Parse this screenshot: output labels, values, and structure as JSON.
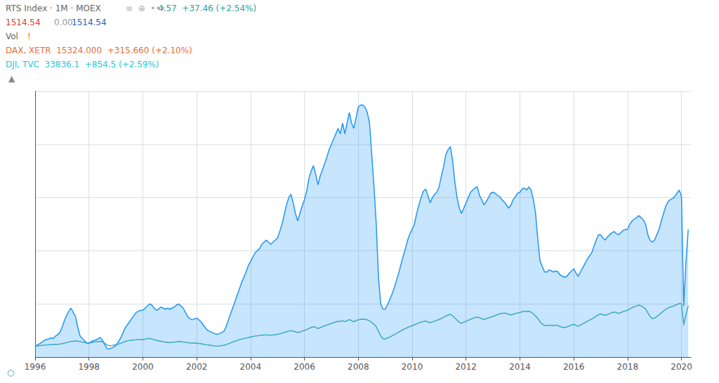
{
  "chart_data": {
    "type": "line",
    "annotations": [
      {
        "text": "RTS Index · 1M · MOEX",
        "color": "#666666"
      },
      {
        "text": "≡  ⊕  •••",
        "color": "#aaaaaa"
      },
      {
        "text": "4.57  +37.46 (+2.54%)",
        "color": "#26a69a"
      },
      {
        "text": "1514.54",
        "color": "#e53935"
      },
      {
        "text": "0.00",
        "color": "#999999"
      },
      {
        "text": "1514.54",
        "color": "#1565C0"
      },
      {
        "text": "Vol",
        "color": "#666666"
      },
      {
        "text": "!",
        "color": "#FF6B00"
      },
      {
        "text": "DAX, XETR  15324.000  +315.660 (+2.10%)",
        "color": "#e07040"
      },
      {
        "text": "DJI, TVC  33836.1  +854.5 (+2.59%)",
        "color": "#26C6DA"
      },
      {
        "text": "▲",
        "color": "#888888"
      },
      {
        "text": "⬡",
        "color": "#26a69a"
      }
    ],
    "x": [
      1996.0,
      1996.083,
      1996.167,
      1996.25,
      1996.333,
      1996.417,
      1996.5,
      1996.583,
      1996.667,
      1996.75,
      1996.833,
      1996.917,
      1997.0,
      1997.083,
      1997.167,
      1997.25,
      1997.333,
      1997.417,
      1997.5,
      1997.583,
      1997.667,
      1997.75,
      1997.833,
      1997.917,
      1998.0,
      1998.083,
      1998.167,
      1998.25,
      1998.333,
      1998.417,
      1998.5,
      1998.583,
      1998.667,
      1998.75,
      1998.833,
      1998.917,
      1999.0,
      1999.083,
      1999.167,
      1999.25,
      1999.333,
      1999.417,
      1999.5,
      1999.583,
      1999.667,
      1999.75,
      1999.833,
      1999.917,
      2000.0,
      2000.083,
      2000.167,
      2000.25,
      2000.333,
      2000.417,
      2000.5,
      2000.583,
      2000.667,
      2000.75,
      2000.833,
      2000.917,
      2001.0,
      2001.083,
      2001.167,
      2001.25,
      2001.333,
      2001.417,
      2001.5,
      2001.583,
      2001.667,
      2001.75,
      2001.833,
      2001.917,
      2002.0,
      2002.083,
      2002.167,
      2002.25,
      2002.333,
      2002.417,
      2002.5,
      2002.583,
      2002.667,
      2002.75,
      2002.833,
      2002.917,
      2003.0,
      2003.083,
      2003.167,
      2003.25,
      2003.333,
      2003.417,
      2003.5,
      2003.583,
      2003.667,
      2003.75,
      2003.833,
      2003.917,
      2004.0,
      2004.083,
      2004.167,
      2004.25,
      2004.333,
      2004.417,
      2004.5,
      2004.583,
      2004.667,
      2004.75,
      2004.833,
      2004.917,
      2005.0,
      2005.083,
      2005.167,
      2005.25,
      2005.333,
      2005.417,
      2005.5,
      2005.583,
      2005.667,
      2005.75,
      2005.833,
      2005.917,
      2006.0,
      2006.083,
      2006.167,
      2006.25,
      2006.333,
      2006.417,
      2006.5,
      2006.583,
      2006.667,
      2006.75,
      2006.833,
      2006.917,
      2007.0,
      2007.083,
      2007.167,
      2007.25,
      2007.333,
      2007.417,
      2007.5,
      2007.583,
      2007.667,
      2007.75,
      2007.833,
      2007.917,
      2008.0,
      2008.083,
      2008.167,
      2008.25,
      2008.333,
      2008.417,
      2008.5,
      2008.583,
      2008.667,
      2008.75,
      2008.833,
      2008.917,
      2009.0,
      2009.083,
      2009.167,
      2009.25,
      2009.333,
      2009.417,
      2009.5,
      2009.583,
      2009.667,
      2009.75,
      2009.833,
      2009.917,
      2010.0,
      2010.083,
      2010.167,
      2010.25,
      2010.333,
      2010.417,
      2010.5,
      2010.583,
      2010.667,
      2010.75,
      2010.833,
      2010.917,
      2011.0,
      2011.083,
      2011.167,
      2011.25,
      2011.333,
      2011.417,
      2011.5,
      2011.583,
      2011.667,
      2011.75,
      2011.833,
      2011.917,
      2012.0,
      2012.083,
      2012.167,
      2012.25,
      2012.333,
      2012.417,
      2012.5,
      2012.583,
      2012.667,
      2012.75,
      2012.833,
      2012.917,
      2013.0,
      2013.083,
      2013.167,
      2013.25,
      2013.333,
      2013.417,
      2013.5,
      2013.583,
      2013.667,
      2013.75,
      2013.833,
      2013.917,
      2014.0,
      2014.083,
      2014.167,
      2014.25,
      2014.333,
      2014.417,
      2014.5,
      2014.583,
      2014.667,
      2014.75,
      2014.833,
      2014.917,
      2015.0,
      2015.083,
      2015.167,
      2015.25,
      2015.333,
      2015.417,
      2015.5,
      2015.583,
      2015.667,
      2015.75,
      2015.833,
      2015.917,
      2016.0,
      2016.083,
      2016.167,
      2016.25,
      2016.333,
      2016.417,
      2016.5,
      2016.583,
      2016.667,
      2016.75,
      2016.833,
      2016.917,
      2017.0,
      2017.083,
      2017.167,
      2017.25,
      2017.333,
      2017.417,
      2017.5,
      2017.583,
      2017.667,
      2017.75,
      2017.833,
      2017.917,
      2018.0,
      2018.083,
      2018.167,
      2018.25,
      2018.333,
      2018.417,
      2018.5,
      2018.583,
      2018.667,
      2018.75,
      2018.833,
      2018.917,
      2019.0,
      2019.083,
      2019.167,
      2019.25,
      2019.333,
      2019.417,
      2019.5,
      2019.583,
      2019.667,
      2019.75,
      2019.833,
      2019.917,
      2020.0,
      2020.083,
      2020.167,
      2020.25
    ],
    "series": [
      {
        "type": "area",
        "color": "#2196F3",
        "values": [
          100,
          115,
          125,
          140,
          155,
          165,
          170,
          180,
          175,
          195,
          210,
          230,
          280,
          340,
          390,
          430,
          460,
          420,
          380,
          280,
          200,
          175,
          155,
          130,
          130,
          145,
          155,
          160,
          170,
          185,
          160,
          120,
          80,
          75,
          85,
          95,
          110,
          140,
          175,
          220,
          270,
          300,
          330,
          360,
          390,
          420,
          430,
          440,
          440,
          460,
          480,
          500,
          490,
          460,
          440,
          450,
          470,
          460,
          450,
          460,
          450,
          460,
          470,
          490,
          500,
          480,
          460,
          420,
          380,
          360,
          350,
          360,
          365,
          350,
          330,
          300,
          270,
          250,
          240,
          230,
          220,
          215,
          220,
          230,
          240,
          280,
          340,
          400,
          460,
          520,
          580,
          640,
          700,
          750,
          800,
          860,
          900,
          940,
          980,
          1000,
          1020,
          1060,
          1080,
          1100,
          1080,
          1060,
          1080,
          1100,
          1120,
          1180,
          1250,
          1340,
          1430,
          1500,
          1530,
          1450,
          1350,
          1280,
          1350,
          1420,
          1480,
          1560,
          1680,
          1750,
          1800,
          1720,
          1620,
          1700,
          1760,
          1820,
          1880,
          1950,
          2000,
          2050,
          2100,
          2150,
          2100,
          2200,
          2100,
          2200,
          2300,
          2200,
          2150,
          2250,
          2350,
          2370,
          2370,
          2350,
          2300,
          2200,
          1900,
          1600,
          1250,
          750,
          500,
          450,
          450,
          490,
          540,
          590,
          650,
          720,
          790,
          870,
          950,
          1020,
          1100,
          1160,
          1200,
          1250,
          1350,
          1430,
          1500,
          1560,
          1580,
          1520,
          1450,
          1500,
          1530,
          1550,
          1600,
          1700,
          1790,
          1900,
          1950,
          1980,
          1850,
          1650,
          1500,
          1400,
          1350,
          1400,
          1450,
          1500,
          1550,
          1570,
          1590,
          1600,
          1520,
          1480,
          1430,
          1460,
          1500,
          1540,
          1550,
          1540,
          1520,
          1510,
          1480,
          1460,
          1430,
          1400,
          1430,
          1480,
          1510,
          1540,
          1550,
          1580,
          1590,
          1570,
          1600,
          1570,
          1480,
          1350,
          1100,
          900,
          850,
          800,
          800,
          820,
          810,
          800,
          810,
          800,
          770,
          760,
          750,
          760,
          790,
          810,
          830,
          790,
          760,
          800,
          840,
          880,
          920,
          950,
          980,
          1040,
          1100,
          1150,
          1150,
          1120,
          1100,
          1130,
          1150,
          1170,
          1180,
          1160,
          1150,
          1170,
          1190,
          1200,
          1200,
          1250,
          1280,
          1300,
          1310,
          1330,
          1310,
          1290,
          1250,
          1150,
          1100,
          1080,
          1100,
          1150,
          1200,
          1280,
          1350,
          1420,
          1460,
          1480,
          1490,
          1510,
          1540,
          1570,
          1514,
          480,
          900,
          1200
        ]
      },
      {
        "type": "line",
        "color": "#e07040",
        "values": [
          100,
          104,
          108,
          110,
          112,
          114,
          115,
          116,
          117,
          118,
          119,
          122,
          125,
          130,
          136,
          140,
          145,
          148,
          150,
          148,
          146,
          140,
          136,
          132,
          132,
          136,
          140,
          143,
          145,
          148,
          144,
          130,
          115,
          105,
          108,
          112,
          115,
          120,
          128,
          136,
          145,
          152,
          155,
          158,
          160,
          162,
          163,
          164,
          164,
          168,
          172,
          175,
          170,
          163,
          156,
          152,
          148,
          144,
          140,
          138,
          135,
          137,
          140,
          143,
          145,
          143,
          141,
          138,
          136,
          132,
          130,
          131,
          130,
          127,
          124,
          120,
          116,
          113,
          110,
          107,
          104,
          102,
          104,
          107,
          110,
          116,
          124,
          132,
          140,
          148,
          155,
          162,
          168,
          173,
          178,
          183,
          188,
          193,
          197,
          200,
          202,
          205,
          207,
          208,
          206,
          205,
          207,
          210,
          213,
          218,
          224,
          230,
          237,
          244,
          248,
          243,
          237,
          230,
          236,
          243,
          250,
          258,
          268,
          278,
          285,
          277,
          268,
          276,
          285,
          293,
          300,
          308,
          315,
          322,
          330,
          337,
          332,
          342,
          332,
          342,
          352,
          342,
          332,
          342,
          350,
          354,
          357,
          354,
          350,
          340,
          325,
          308,
          285,
          240,
          200,
          170,
          170,
          178,
          188,
          198,
          210,
          222,
          234,
          246,
          258,
          268,
          278,
          287,
          295,
          303,
          312,
          321,
          328,
          334,
          337,
          330,
          322,
          330,
          338,
          345,
          352,
          362,
          373,
          385,
          395,
          402,
          388,
          367,
          347,
          327,
          317,
          327,
          336,
          345,
          355,
          363,
          370,
          376,
          368,
          360,
          352,
          360,
          368,
          375,
          382,
          390,
          398,
          405,
          410,
          414,
          408,
          402,
          396,
          402,
          408,
          414,
          418,
          425,
          432,
          428,
          430,
          422,
          406,
          385,
          362,
          332,
          308,
          295,
          296,
          300,
          298,
          296,
          300,
          296,
          284,
          280,
          276,
          284,
          292,
          300,
          308,
          298,
          288,
          300,
          312,
          324,
          336,
          346,
          356,
          370,
          384,
          398,
          405,
          398,
          392,
          400,
          408,
          416,
          422,
          416,
          410,
          418,
          426,
          434,
          440,
          452,
          464,
          474,
          480,
          488,
          480,
          468,
          452,
          416,
          382,
          360,
          366,
          380,
          396,
          414,
          432,
          448,
          460,
          470,
          476,
          484,
          494,
          504,
          500,
          300,
          400,
          480
        ]
      },
      {
        "type": "line",
        "color": "#26C6DA",
        "values": [
          100,
          104,
          107,
          110,
          112,
          114,
          116,
          117,
          118,
          119,
          120,
          123,
          126,
          131,
          137,
          142,
          147,
          150,
          152,
          149,
          147,
          141,
          137,
          133,
          133,
          137,
          141,
          144,
          146,
          149,
          145,
          131,
          116,
          106,
          109,
          113,
          116,
          121,
          129,
          137,
          146,
          153,
          156,
          159,
          161,
          163,
          164,
          165,
          165,
          169,
          173,
          176,
          171,
          164,
          157,
          153,
          149,
          145,
          141,
          139,
          136,
          138,
          141,
          144,
          146,
          144,
          142,
          139,
          137,
          133,
          131,
          132,
          131,
          128,
          125,
          121,
          117,
          114,
          111,
          108,
          105,
          103,
          105,
          108,
          111,
          117,
          125,
          133,
          141,
          149,
          156,
          163,
          169,
          174,
          179,
          184,
          189,
          194,
          198,
          201,
          203,
          206,
          208,
          209,
          207,
          206,
          208,
          211,
          214,
          219,
          225,
          231,
          238,
          245,
          249,
          244,
          238,
          231,
          237,
          244,
          251,
          259,
          269,
          279,
          286,
          278,
          269,
          277,
          286,
          294,
          301,
          309,
          316,
          323,
          331,
          338,
          333,
          343,
          333,
          343,
          353,
          343,
          333,
          343,
          351,
          355,
          358,
          355,
          351,
          341,
          326,
          309,
          286,
          241,
          201,
          171,
          171,
          179,
          189,
          199,
          211,
          223,
          235,
          247,
          259,
          269,
          279,
          288,
          296,
          304,
          313,
          322,
          329,
          335,
          338,
          331,
          323,
          331,
          339,
          346,
          353,
          363,
          374,
          386,
          396,
          403,
          389,
          368,
          348,
          328,
          318,
          328,
          337,
          346,
          356,
          364,
          371,
          377,
          369,
          361,
          353,
          361,
          369,
          376,
          383,
          391,
          399,
          406,
          411,
          415,
          409,
          403,
          397,
          403,
          409,
          415,
          419,
          426,
          433,
          429,
          431,
          423,
          407,
          386,
          363,
          333,
          309,
          296,
          297,
          301,
          299,
          297,
          301,
          297,
          285,
          281,
          277,
          285,
          293,
          301,
          309,
          299,
          289,
          301,
          313,
          325,
          337,
          347,
          357,
          371,
          385,
          399,
          406,
          399,
          393,
          401,
          409,
          417,
          423,
          417,
          411,
          419,
          427,
          435,
          441,
          453,
          465,
          475,
          481,
          489,
          481,
          469,
          453,
          417,
          383,
          361,
          367,
          381,
          397,
          415,
          433,
          449,
          461,
          471,
          477,
          485,
          495,
          505,
          501,
          301,
          401,
          481
        ]
      }
    ],
    "xlim": [
      1996.0,
      2020.35
    ],
    "xticks": [
      1996,
      1998,
      2000,
      2002,
      2004,
      2006,
      2008,
      2010,
      2012,
      2014,
      2016,
      2018,
      2020
    ],
    "ylim": [
      0,
      2500
    ],
    "yticks": [
      500,
      1000,
      1500,
      2000,
      2500
    ],
    "grid": true,
    "tick_labels": "x"
  }
}
